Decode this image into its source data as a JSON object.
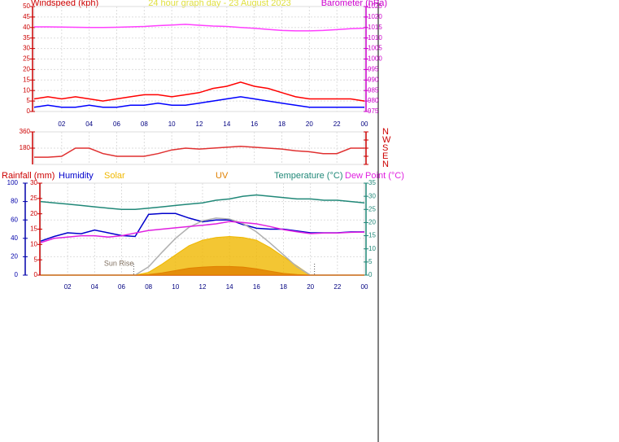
{
  "chart_data": [
    {
      "type": "line",
      "title": "24 hour graph day - 23 August 2023",
      "y_label": "Windspeed (kph)",
      "y2_label": "Barometer (hPa)",
      "x": [
        0,
        1,
        2,
        3,
        4,
        5,
        6,
        7,
        8,
        9,
        10,
        11,
        12,
        13,
        14,
        15,
        16,
        17,
        18,
        19,
        20,
        21,
        22,
        23,
        24
      ],
      "xlim": [
        0,
        24
      ],
      "xticks": [
        {
          "value": 2,
          "label": "02"
        },
        {
          "value": 4,
          "label": "04"
        },
        {
          "value": 6,
          "label": "06"
        },
        {
          "value": 8,
          "label": "08"
        },
        10,
        12,
        14,
        16,
        18,
        20,
        22,
        {
          "value": 24,
          "label": "00"
        }
      ],
      "ylim": [
        0,
        50
      ],
      "yticks": [
        0,
        5,
        10,
        15,
        20,
        25,
        30,
        35,
        40,
        45,
        50
      ],
      "y2lim": [
        975,
        1025
      ],
      "y2ticks": [
        975,
        980,
        985,
        990,
        995,
        1000,
        1005,
        1010,
        1015,
        1020,
        1025
      ],
      "grid": true,
      "series": [
        {
          "color": "#ff0000",
          "values": [
            6,
            7,
            6,
            7,
            6,
            5,
            6,
            7,
            8,
            8,
            7,
            8,
            9,
            11,
            12,
            14,
            12,
            11,
            9,
            7,
            6,
            6,
            6,
            6,
            5
          ]
        },
        {
          "color": "#0000ff",
          "values": [
            2,
            3,
            2,
            2,
            3,
            2,
            2,
            3,
            3,
            4,
            3,
            3,
            4,
            5,
            6,
            7,
            6,
            5,
            4,
            3,
            2,
            2,
            2,
            2,
            2
          ]
        },
        {
          "color": "#ff40ff",
          "axis": "y2",
          "values": [
            1015.3,
            1015.3,
            1015.2,
            1015.1,
            1015.0,
            1015.0,
            1015.1,
            1015.3,
            1015.5,
            1015.9,
            1016.2,
            1016.5,
            1016.1,
            1015.7,
            1015.5,
            1015.0,
            1014.6,
            1014.1,
            1013.6,
            1013.4,
            1013.4,
            1013.6,
            1014.0,
            1014.4,
            1014.7
          ]
        }
      ]
    },
    {
      "type": "line",
      "x": [
        0,
        1,
        2,
        3,
        4,
        5,
        6,
        7,
        8,
        9,
        10,
        11,
        12,
        13,
        14,
        15,
        16,
        17,
        18,
        19,
        20,
        21,
        22,
        23,
        24
      ],
      "xlim": [
        0,
        24
      ],
      "xticks": [
        2,
        4,
        6,
        8,
        10,
        12,
        14,
        16,
        18,
        20,
        22,
        24
      ],
      "ylim": [
        0,
        360
      ],
      "yticks": [
        180,
        360
      ],
      "y2lim": [
        0,
        360
      ],
      "y2ticks": [
        {
          "value": 360,
          "label": "N"
        },
        {
          "value": 270,
          "label": "W"
        },
        {
          "value": 180,
          "label": "S"
        },
        {
          "value": 90,
          "label": "E"
        },
        {
          "value": 0,
          "label": "N"
        }
      ],
      "grid": true,
      "series": [
        {
          "color": "#e03030",
          "values": [
            80,
            80,
            90,
            180,
            180,
            120,
            90,
            90,
            90,
            120,
            160,
            180,
            170,
            180,
            190,
            200,
            190,
            180,
            170,
            150,
            140,
            120,
            120,
            180,
            180
          ]
        }
      ]
    },
    {
      "type": "line",
      "x": [
        0,
        1,
        2,
        3,
        4,
        5,
        6,
        7,
        8,
        9,
        10,
        11,
        12,
        13,
        14,
        15,
        16,
        17,
        18,
        19,
        20,
        21,
        22,
        23,
        24
      ],
      "xlim": [
        0,
        24
      ],
      "xticks": [
        {
          "value": 2,
          "label": "02"
        },
        {
          "value": 4,
          "label": "04"
        },
        {
          "value": 6,
          "label": "06"
        },
        {
          "value": 8,
          "label": "08"
        },
        10,
        12,
        14,
        16,
        18,
        20,
        22,
        {
          "value": 24,
          "label": "00"
        }
      ],
      "ylim": [
        0,
        100
      ],
      "yticks": [
        0,
        20,
        40,
        60,
        80,
        100
      ],
      "y2lim": [
        0,
        30
      ],
      "y2ticks": [
        0,
        5,
        10,
        15,
        20,
        25,
        30
      ],
      "y3lim": [
        0,
        35
      ],
      "y3ticks": [
        0,
        5,
        10,
        15,
        20,
        25,
        30,
        35
      ],
      "y4lim": [
        0,
        1000
      ],
      "y5lim": [
        0,
        16
      ],
      "grid": true,
      "series": [
        {
          "name": "Rainfall (mm)",
          "color": "#cc0000",
          "axis": "y2",
          "values": [
            0,
            0,
            0,
            0,
            0,
            0,
            0,
            0,
            0,
            0,
            0,
            0,
            0,
            0,
            0,
            0,
            0,
            0,
            0,
            0,
            0,
            0,
            0,
            0,
            0
          ]
        },
        {
          "name": "Humidity",
          "color": "#0000cc",
          "values": [
            37,
            42,
            46,
            45,
            49,
            46,
            43,
            42,
            66,
            67,
            67,
            62,
            58,
            60,
            60,
            55,
            51,
            50,
            50,
            48,
            46,
            46,
            46,
            47,
            47
          ]
        },
        {
          "name": "Solar",
          "color": "#f0b800",
          "axis": "y4",
          "area": true,
          "values": [
            0,
            0,
            0,
            0,
            0,
            0,
            0,
            0,
            30,
            120,
            220,
            320,
            380,
            410,
            420,
            410,
            380,
            300,
            200,
            100,
            0,
            0,
            0,
            0,
            0
          ]
        },
        {
          "color": "#b0b0b0",
          "axis": "y4",
          "values": [
            0,
            0,
            0,
            0,
            0,
            0,
            0,
            0,
            90,
            250,
            400,
            520,
            590,
            620,
            610,
            560,
            470,
            350,
            220,
            90,
            0,
            0,
            0,
            0,
            0
          ]
        },
        {
          "name": "UV",
          "color": "#e08000",
          "axis": "y5",
          "area": true,
          "values": [
            0,
            0,
            0,
            0,
            0,
            0,
            0,
            0,
            0.1,
            0.4,
            0.8,
            1.2,
            1.4,
            1.5,
            1.5,
            1.4,
            1.1,
            0.7,
            0.3,
            0.1,
            0,
            0,
            0,
            0,
            0
          ]
        },
        {
          "name": "Temperature (°C)",
          "color": "#208878",
          "axis": "y3",
          "values": [
            28,
            27.5,
            27,
            26.5,
            26,
            25.5,
            25,
            25,
            25.5,
            26,
            26.5,
            27,
            27.5,
            28.5,
            29,
            30,
            30.5,
            30,
            29.5,
            29,
            29,
            28.5,
            28.5,
            28,
            27.5
          ]
        },
        {
          "name": "Dew Point (°C)",
          "color": "#e020e0",
          "axis": "y3",
          "values": [
            12.4,
            14,
            14.5,
            15,
            15,
            14.5,
            15,
            16,
            17,
            17.5,
            18,
            18.5,
            19,
            19.5,
            20.4,
            20,
            19.5,
            18.5,
            17.3,
            16.5,
            15.8,
            16,
            16,
            16.3,
            16.4
          ]
        }
      ],
      "annotations": [
        {
          "text": "Sun Rise",
          "x": 6.9
        }
      ],
      "sunset": 20.3
    }
  ]
}
